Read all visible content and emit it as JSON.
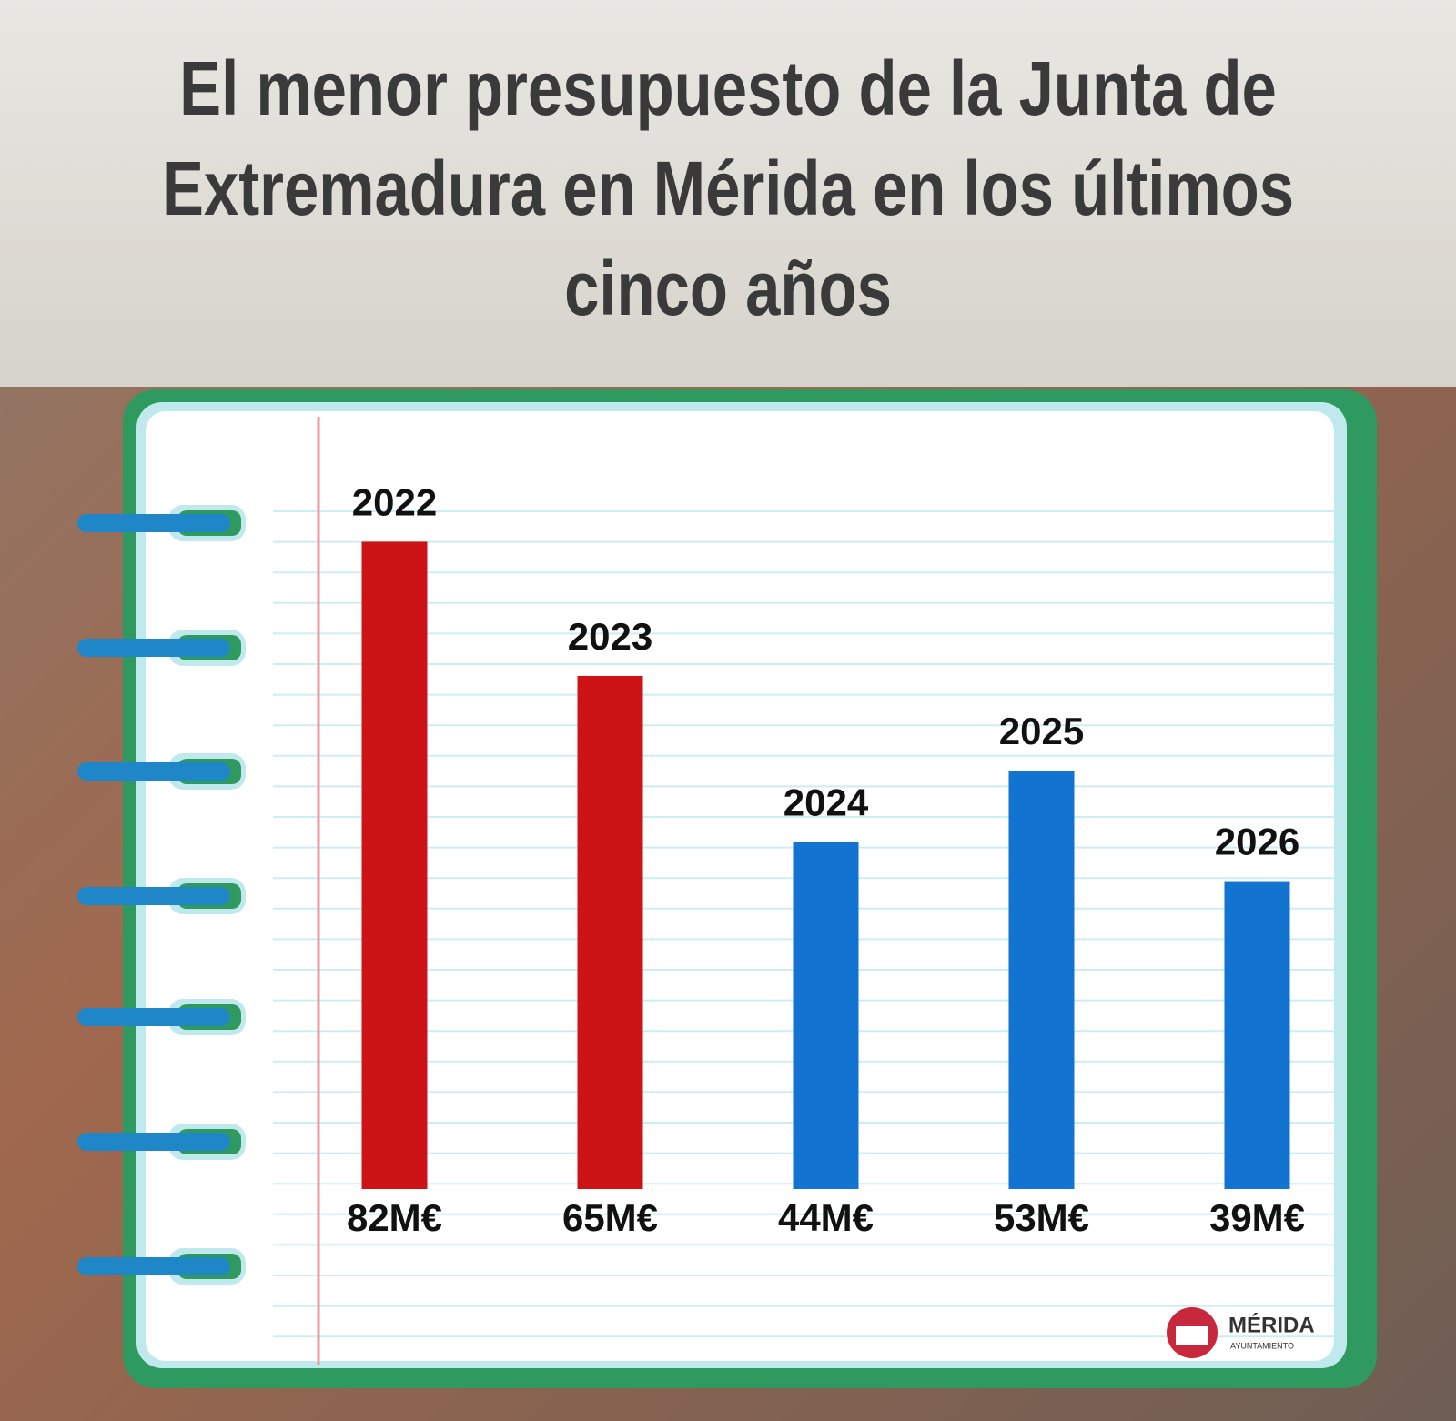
{
  "chart_data": {
    "type": "bar",
    "title": "El menor presupuesto de la Junta de Extremadura en Mérida en los últimos cinco años",
    "categories": [
      "2022",
      "2023",
      "2024",
      "2025",
      "2026"
    ],
    "values": [
      82,
      65,
      44,
      53,
      39
    ],
    "value_labels": [
      "82M€",
      "65M€",
      "44M€",
      "53M€",
      "39M€"
    ],
    "colors": [
      "#cc1417",
      "#cc1417",
      "#1273d0",
      "#1273d0",
      "#1273d0"
    ],
    "ylim": [
      0,
      90
    ]
  },
  "logo": {
    "name": "MÉRIDA",
    "subtitle": "AYUNTAMIENTO"
  }
}
